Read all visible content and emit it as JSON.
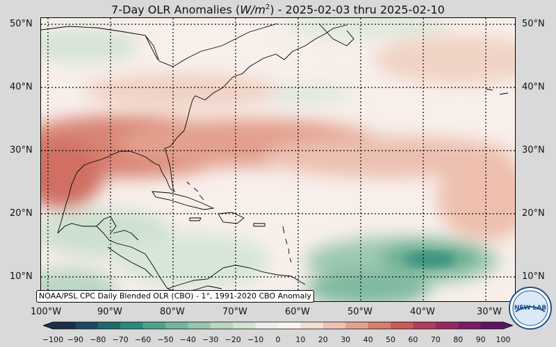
{
  "title_prefix": "7-Day OLR Anomalies (",
  "title_unit": "W/m",
  "title_sup": "2",
  "title_suffix": ") - 2025-02-03 thru 2025-02-10",
  "lat_labels": [
    "50°N",
    "40°N",
    "30°N",
    "20°N",
    "10°N"
  ],
  "lon_labels": [
    "100°W",
    "90°W",
    "80°W",
    "70°W",
    "60°W",
    "50°W",
    "40°W",
    "30°W"
  ],
  "credit": "NOAA/PSL CPC Daily Blended OLR (CBO) - 1°, 1991-2020 CBO Anomaly",
  "logo_text": "NEW LAB",
  "colorbar": {
    "ticks": [
      "−100",
      "−90",
      "−80",
      "−70",
      "−60",
      "−50",
      "−40",
      "−30",
      "−20",
      "−10",
      "0",
      "10",
      "20",
      "30",
      "40",
      "50",
      "60",
      "70",
      "80",
      "90",
      "100"
    ],
    "colors": [
      "#1f2c47",
      "#1d4a5e",
      "#1d6a6f",
      "#2a8a7c",
      "#4fa38c",
      "#73b59d",
      "#97c7ae",
      "#b9d7c1",
      "#d3e4d4",
      "#ebf1ea",
      "#faf3ef",
      "#f5dfd6",
      "#eec3b5",
      "#e4a391",
      "#d77e6d",
      "#c65c5b",
      "#b13d5c",
      "#972862",
      "#7a1b66",
      "#5c1461"
    ]
  },
  "legend_colors": {
    "land_outline": "#000000",
    "ocean": "#f7eeea"
  }
}
